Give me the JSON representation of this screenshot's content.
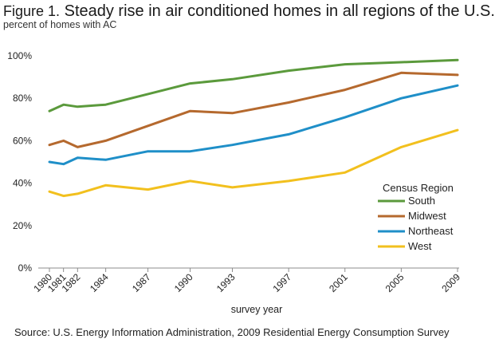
{
  "header": {
    "figure_label": "Figure 1.",
    "title": "Steady rise in air conditioned homes in all regions of the U.S.",
    "subtitle": "percent of homes with AC"
  },
  "footer": {
    "source": "Source:  U.S. Energy Information Administration, 2009  Residential Energy Consumption Survey"
  },
  "chart_data": {
    "type": "line",
    "title": "Figure 1. Steady rise in air conditioned homes in all regions of the U.S.",
    "ylabel": "percent of homes with AC",
    "xlabel": "survey year",
    "x": [
      1980,
      1981,
      1982,
      1984,
      1987,
      1990,
      1993,
      1997,
      2001,
      2005,
      2009
    ],
    "ylim": [
      0,
      100
    ],
    "yticks": [
      0,
      20,
      40,
      60,
      80,
      100
    ],
    "ytick_labels": [
      "0%",
      "20%",
      "40%",
      "60%",
      "80%",
      "100%"
    ],
    "grid": false,
    "legend": {
      "title": "Census Region",
      "placement": "bottom-right"
    },
    "series": [
      {
        "name": "South",
        "color": "#5b9a3c",
        "values": [
          74,
          77,
          76,
          77,
          82,
          87,
          89,
          93,
          96,
          97,
          98
        ]
      },
      {
        "name": "Midwest",
        "color": "#b5692e",
        "values": [
          58,
          60,
          57,
          60,
          67,
          74,
          73,
          78,
          84,
          92,
          91
        ]
      },
      {
        "name": "Northeast",
        "color": "#1f8fc8",
        "values": [
          50,
          49,
          52,
          51,
          55,
          55,
          58,
          63,
          71,
          80,
          86
        ]
      },
      {
        "name": "West",
        "color": "#f2c01e",
        "values": [
          36,
          34,
          35,
          39,
          37,
          41,
          38,
          41,
          45,
          57,
          65
        ]
      }
    ]
  }
}
